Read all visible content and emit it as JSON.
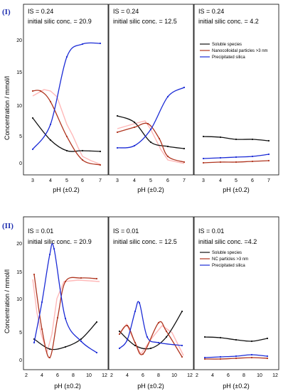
{
  "figure": {
    "colors": {
      "soluble": "#111111",
      "nanocolloidal": "#b0351f",
      "precipitated": "#1b2bd6",
      "marker": "#1f2fb0"
    },
    "rows": [
      {
        "marker": "(I)",
        "ylabel": "Concentration / mmol/l",
        "yticks": [
          "0",
          "5",
          "10",
          "15",
          "20"
        ],
        "legend": [
          "Soluble species",
          "Nanocolloidal particles >3 nm",
          "Precipitated silica"
        ],
        "panels": [
          {
            "is_label": "IS = 0.24",
            "conc_label": "initial silic conc. = 20.9",
            "xlabel": "pH (±0.2)",
            "xticks": [
              "3",
              "4",
              "5",
              "6",
              "7"
            ]
          },
          {
            "is_label": "IS = 0.24",
            "conc_label": "initial silic conc. = 12.5",
            "xlabel": "pH (±0.2)",
            "xticks": [
              "3",
              "4",
              "5",
              "6",
              "7"
            ]
          },
          {
            "is_label": "IS = 0.24",
            "conc_label": "initial silic conc. = 4.2",
            "xlabel": "pH (±0.2)",
            "xticks": [
              "3",
              "4",
              "5",
              "6",
              "7"
            ]
          }
        ]
      },
      {
        "marker": "(II)",
        "ylabel": "Concentration / mmol/l",
        "yticks": [
          "0",
          "5",
          "10",
          "15",
          "20"
        ],
        "legend": [
          "Soluble species",
          "NC particles >3 nm",
          "Precipitated silica"
        ],
        "panels": [
          {
            "is_label": "IS = 0.01",
            "conc_label": "initial silic conc. = 20.9",
            "xlabel": "pH (±0.2)",
            "xticks": [
              "2",
              "4",
              "6",
              "8",
              "10",
              "12"
            ]
          },
          {
            "is_label": "IS = 0.01",
            "conc_label": "initial silic conc. = 12.5",
            "xlabel": "pH (±0.2)",
            "xticks": [
              "2",
              "4",
              "6",
              "8",
              "10",
              "12"
            ]
          },
          {
            "is_label": "IS = 0.01",
            "conc_label": "initial silic conc. =4.2",
            "xlabel": "pH (±0.2)",
            "xticks": [
              "2",
              "4",
              "6",
              "8",
              "10",
              "12"
            ]
          }
        ]
      }
    ]
  },
  "chart_data": [
    {
      "type": "line",
      "xlabel": "pH (±0.2)",
      "ylabel": "Concentration / mmol/l",
      "xlim": [
        2.6,
        7.4
      ],
      "ylim": [
        -1,
        22
      ],
      "grid": false,
      "series": [
        {
          "name": "Soluble species",
          "x": [
            3,
            4,
            5,
            6,
            7
          ],
          "values": [
            7.0,
            4.0,
            2.6,
            2.0,
            1.8
          ]
        },
        {
          "name": "Nanocolloidal particles >3 nm",
          "x": [
            3,
            3.5,
            4,
            5,
            6,
            7
          ],
          "values": [
            11.5,
            11.5,
            10.0,
            4.0,
            0.5,
            -0.2
          ]
        },
        {
          "name": "Precipitated silica",
          "x": [
            3,
            4,
            5,
            6,
            7
          ],
          "values": [
            2.5,
            6.5,
            17.0,
            19.0,
            19.2
          ]
        }
      ]
    },
    {
      "type": "line",
      "xlabel": "pH (±0.2)",
      "ylabel": "Concentration / mmol/l",
      "xlim": [
        2.6,
        7.4
      ],
      "ylim": [
        -1,
        22
      ],
      "grid": false,
      "series": [
        {
          "name": "Soluble species",
          "x": [
            3,
            4,
            5,
            6,
            7
          ],
          "values": [
            7.5,
            6.5,
            3.5,
            2.8,
            2.5
          ]
        },
        {
          "name": "Nanocolloidal particles >3 nm",
          "x": [
            3,
            4,
            4.8,
            5.5,
            6,
            7
          ],
          "values": [
            5.0,
            5.8,
            6.3,
            4.0,
            1.2,
            0.3
          ]
        },
        {
          "name": "Precipitated silica",
          "x": [
            3,
            4,
            5,
            6,
            7
          ],
          "values": [
            2.5,
            3.0,
            5.5,
            10.5,
            12.0
          ]
        }
      ]
    },
    {
      "type": "line",
      "xlabel": "pH (±0.2)",
      "ylabel": "Concentration / mmol/l",
      "xlim": [
        2.6,
        7.4
      ],
      "ylim": [
        -1,
        22
      ],
      "grid": false,
      "series": [
        {
          "name": "Soluble species",
          "x": [
            3,
            4,
            5,
            6,
            7
          ],
          "values": [
            4.1,
            3.9,
            3.7,
            3.7,
            3.5
          ]
        },
        {
          "name": "Nanocolloidal particles >3 nm",
          "x": [
            3,
            4,
            5,
            6,
            7
          ],
          "values": [
            0.2,
            0.3,
            0.3,
            0.4,
            0.5
          ]
        },
        {
          "name": "Precipitated silica",
          "x": [
            3,
            4,
            5,
            6,
            7
          ],
          "values": [
            0.8,
            0.9,
            1.0,
            1.1,
            1.4
          ]
        }
      ]
    },
    {
      "type": "line",
      "xlabel": "pH (±0.2)",
      "ylabel": "Concentration / mmol/l",
      "xlim": [
        2,
        12
      ],
      "ylim": [
        -1,
        22
      ],
      "grid": false,
      "series": [
        {
          "name": "Soluble species",
          "x": [
            3,
            5,
            7,
            9,
            11
          ],
          "values": [
            3.5,
            1.8,
            2.2,
            3.5,
            6.0
          ]
        },
        {
          "name": "NC particles >3 nm",
          "x": [
            3,
            4,
            5,
            6,
            7,
            9,
            11
          ],
          "values": [
            14.5,
            5.0,
            0.5,
            7.0,
            12.5,
            13.5,
            13.5
          ]
        },
        {
          "name": "Precipitated silica",
          "x": [
            3,
            4,
            5,
            5.5,
            7,
            9,
            11
          ],
          "values": [
            3.0,
            10.0,
            17.5,
            18.5,
            7.0,
            3.5,
            1.5
          ]
        }
      ]
    },
    {
      "type": "line",
      "xlabel": "pH (±0.2)",
      "ylabel": "Concentration / mmol/l",
      "xlim": [
        2,
        12
      ],
      "ylim": [
        -1,
        22
      ],
      "grid": false,
      "series": [
        {
          "name": "Soluble species",
          "x": [
            3,
            5,
            7,
            9,
            11
          ],
          "values": [
            5.0,
            2.5,
            2.0,
            4.0,
            8.5
          ]
        },
        {
          "name": "NC particles >3 nm",
          "x": [
            3,
            4,
            5,
            6,
            8,
            9,
            11
          ],
          "values": [
            4.5,
            6.0,
            3.0,
            1.0,
            6.5,
            5.0,
            0.5
          ]
        },
        {
          "name": "Precipitated silica",
          "x": [
            3,
            4,
            5,
            5.5,
            6.5,
            8,
            11
          ],
          "values": [
            2.0,
            3.5,
            8.5,
            10.0,
            4.0,
            3.0,
            2.5
          ]
        }
      ]
    },
    {
      "type": "line",
      "xlabel": "pH (±0.2)",
      "ylabel": "Concentration / mmol/l",
      "xlim": [
        2,
        12
      ],
      "ylim": [
        -1,
        22
      ],
      "grid": false,
      "series": [
        {
          "name": "Soluble species",
          "x": [
            3,
            5,
            7,
            9,
            11
          ],
          "values": [
            3.8,
            3.7,
            3.4,
            3.2,
            3.7
          ]
        },
        {
          "name": "NC particles >3 nm",
          "x": [
            3,
            5,
            7,
            9,
            11
          ],
          "values": [
            0.2,
            0.2,
            0.3,
            0.4,
            0.3
          ]
        },
        {
          "name": "Precipitated silica",
          "x": [
            3,
            5,
            7,
            9,
            11
          ],
          "values": [
            0.4,
            0.5,
            0.6,
            0.8,
            0.6
          ]
        }
      ]
    }
  ]
}
